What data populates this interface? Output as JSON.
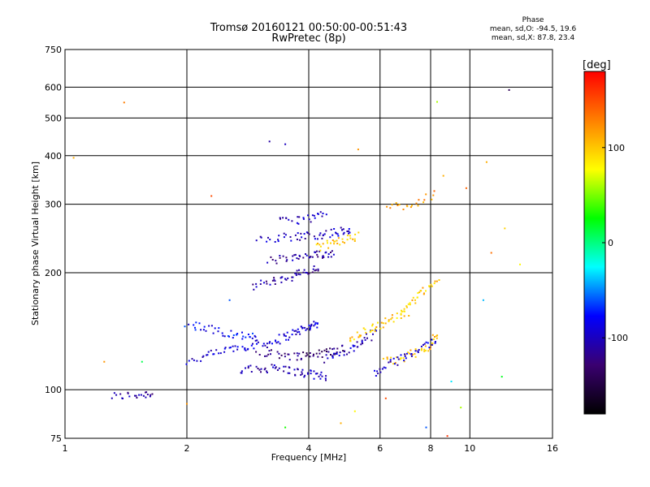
{
  "chart_data": {
    "type": "scatter",
    "title": "Tromsø 20160121 00:50:00-00:51:43",
    "subtitle": "RwPretec (8p)",
    "xlabel": "Frequency [MHz]",
    "ylabel": "Stationary phase Virtual Height [km]",
    "x_scale": "log",
    "y_scale": "log",
    "xlim": [
      1,
      16
    ],
    "ylim": [
      75,
      750
    ],
    "x_ticks": [
      "1",
      "2",
      "4",
      "6",
      "8",
      "10",
      "16"
    ],
    "x_tick_values": [
      1,
      2,
      4,
      6,
      8,
      10,
      16
    ],
    "y_ticks": [
      "75",
      "100",
      "200",
      "300",
      "400",
      "500",
      "600",
      "750"
    ],
    "y_tick_values": [
      75,
      100,
      200,
      300,
      400,
      500,
      600,
      750
    ],
    "grid": true,
    "annotation": {
      "title": "Phase",
      "line1": "mean, sd,O: -94.5, 19.6",
      "line2": "mean, sd,X:  87.8, 23.4"
    },
    "colorbar": {
      "label": "[deg]",
      "range": [
        -180,
        180
      ],
      "ticks": [
        "100",
        "0",
        "-100"
      ],
      "tick_values": [
        100,
        0,
        -100
      ],
      "colors": [
        "#000000",
        "#3a0070",
        "#0000ff",
        "#00ffff",
        "#00ff00",
        "#ffff00",
        "#ff8000",
        "#ff0000"
      ]
    },
    "traces": [
      {
        "name": "",
        "f": [
          1.3,
          1.5,
          1.65
        ],
        "h": [
          96,
          97,
          98
        ],
        "phase": -110,
        "n": 22
      },
      {
        "name": "",
        "f": [
          2.0,
          2.6,
          3.2,
          3.8,
          4.2
        ],
        "h": [
          118,
          128,
          132,
          142,
          148
        ],
        "phase": -95,
        "n": 90
      },
      {
        "name": "",
        "f": [
          2.0,
          2.5,
          3.0
        ],
        "h": [
          148,
          140,
          135
        ],
        "phase": -80,
        "n": 40
      },
      {
        "name": "",
        "f": [
          2.7,
          3.3,
          3.9,
          4.4
        ],
        "h": [
          112,
          114,
          110,
          108
        ],
        "phase": -105,
        "n": 60
      },
      {
        "name": "",
        "f": [
          3.0,
          3.7,
          4.3,
          4.9
        ],
        "h": [
          125,
          122,
          124,
          128
        ],
        "phase": -125,
        "n": 55
      },
      {
        "name": "",
        "f": [
          4.4,
          5.2,
          5.8
        ],
        "h": [
          120,
          128,
          140
        ],
        "phase": -100,
        "n": 35
      },
      {
        "name": "",
        "f": [
          2.9,
          3.6,
          4.2
        ],
        "h": [
          185,
          195,
          205
        ],
        "phase": -110,
        "n": 45
      },
      {
        "name": "",
        "f": [
          3.2,
          4.0,
          4.6
        ],
        "h": [
          215,
          220,
          225
        ],
        "phase": -110,
        "n": 45
      },
      {
        "name": "",
        "f": [
          3.0,
          3.8,
          4.5,
          5.1
        ],
        "h": [
          245,
          248,
          252,
          258
        ],
        "phase": -100,
        "n": 55
      },
      {
        "name": "",
        "f": [
          3.4,
          3.9,
          4.4
        ],
        "h": [
          270,
          275,
          282
        ],
        "phase": -100,
        "n": 25
      },
      {
        "name": "",
        "f": [
          4.2,
          4.7,
          5.3
        ],
        "h": [
          232,
          240,
          248
        ],
        "phase": 100,
        "n": 30
      },
      {
        "name": "",
        "f": [
          5.0,
          5.6,
          6.2,
          7.0
        ],
        "h": [
          135,
          142,
          150,
          158
        ],
        "phase": 100,
        "n": 45
      },
      {
        "name": "",
        "f": [
          6.2,
          7.0,
          7.8,
          8.4
        ],
        "h": [
          118,
          122,
          128,
          138
        ],
        "phase": 105,
        "n": 40
      },
      {
        "name": "",
        "f": [
          5.8,
          6.5,
          7.3,
          8.2
        ],
        "h": [
          110,
          118,
          125,
          135
        ],
        "phase": -95,
        "n": 40
      },
      {
        "name": "",
        "f": [
          6.8,
          7.5,
          8.3
        ],
        "h": [
          160,
          175,
          190
        ],
        "phase": 100,
        "n": 30
      },
      {
        "name": "",
        "f": [
          6.2,
          7.2,
          8.2
        ],
        "h": [
          295,
          300,
          320
        ],
        "phase": 120,
        "n": 20
      }
    ],
    "points": [
      {
        "f": 1.4,
        "h": 548,
        "phase": 130
      },
      {
        "f": 12.5,
        "h": 590,
        "phase": -140
      },
      {
        "f": 8.3,
        "h": 550,
        "phase": 60
      },
      {
        "f": 1.05,
        "h": 395,
        "phase": 110
      },
      {
        "f": 3.2,
        "h": 435,
        "phase": -110
      },
      {
        "f": 3.5,
        "h": 428,
        "phase": -100
      },
      {
        "f": 5.3,
        "h": 415,
        "phase": 120
      },
      {
        "f": 11.0,
        "h": 385,
        "phase": 110
      },
      {
        "f": 9.8,
        "h": 330,
        "phase": 140
      },
      {
        "f": 2.3,
        "h": 315,
        "phase": 150
      },
      {
        "f": 8.6,
        "h": 355,
        "phase": 110
      },
      {
        "f": 12.2,
        "h": 260,
        "phase": 95
      },
      {
        "f": 13.3,
        "h": 210,
        "phase": 80
      },
      {
        "f": 11.3,
        "h": 225,
        "phase": 135
      },
      {
        "f": 1.25,
        "h": 118,
        "phase": 120
      },
      {
        "f": 1.55,
        "h": 118,
        "phase": 10
      },
      {
        "f": 12.0,
        "h": 108,
        "phase": 20
      },
      {
        "f": 9.5,
        "h": 90,
        "phase": 60
      },
      {
        "f": 5.2,
        "h": 88,
        "phase": 80
      },
      {
        "f": 3.5,
        "h": 80,
        "phase": 30
      },
      {
        "f": 7.8,
        "h": 80,
        "phase": -60
      },
      {
        "f": 4.8,
        "h": 82,
        "phase": 110
      },
      {
        "f": 8.8,
        "h": 76,
        "phase": 160
      },
      {
        "f": 2.0,
        "h": 92,
        "phase": 120
      },
      {
        "f": 6.2,
        "h": 95,
        "phase": 150
      },
      {
        "f": 9.0,
        "h": 105,
        "phase": -30
      },
      {
        "f": 2.55,
        "h": 170,
        "phase": -60
      },
      {
        "f": 10.8,
        "h": 170,
        "phase": -40
      }
    ]
  }
}
